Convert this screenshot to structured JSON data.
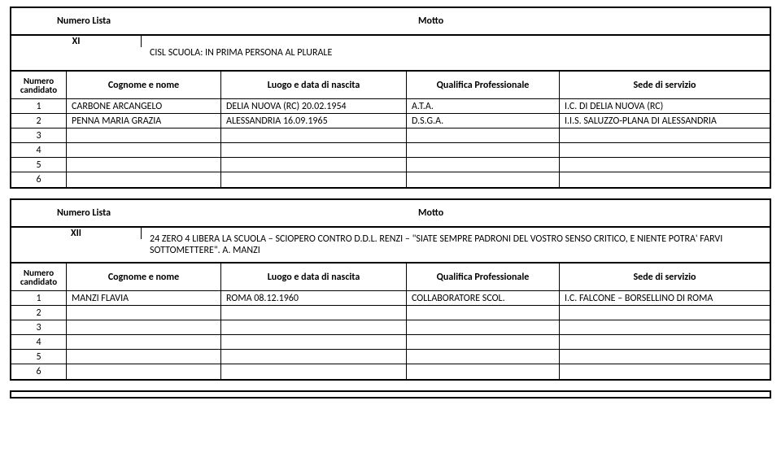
{
  "labels": {
    "numero_lista": "Numero Lista",
    "motto": "Motto",
    "numero": "Numero",
    "candidato": "candidato",
    "cognome_nome": "Cognome e nome",
    "luogo_data": "Luogo e data di nascita",
    "qualifica": "Qualifica Professionale",
    "sede": "Sede di servizio"
  },
  "lists": [
    {
      "num": "XI",
      "motto": "CISL SCUOLA: IN PRIMA PERSONA AL PLURALE",
      "rows": [
        {
          "n": "1",
          "name": "CARBONE ARCANGELO",
          "luogo": "DELIA NUOVA (RC)  20.02.1954",
          "qual": "A.T.A.",
          "sede": "I.C. DI DELIA NUOVA (RC)"
        },
        {
          "n": "2",
          "name": "PENNA MARIA GRAZIA",
          "luogo": "ALESSANDRIA  16.09.1965",
          "qual": "D.S.G.A.",
          "sede": "I.I.S. SALUZZO-PLANA DI ALESSANDRIA"
        },
        {
          "n": "3",
          "name": "",
          "luogo": "",
          "qual": "",
          "sede": ""
        },
        {
          "n": "4",
          "name": "",
          "luogo": "",
          "qual": "",
          "sede": ""
        },
        {
          "n": "5",
          "name": "",
          "luogo": "",
          "qual": "",
          "sede": ""
        },
        {
          "n": "6",
          "name": "",
          "luogo": "",
          "qual": "",
          "sede": ""
        }
      ]
    },
    {
      "num": "XII",
      "motto": "24 ZERO 4 LIBERA LA SCUOLA – SCIOPERO CONTRO D.D.L. RENZI – \"SIATE SEMPRE PADRONI DEL VOSTRO SENSO CRITICO, E NIENTE POTRA' FARVI SOTTOMETTERE\". A. MANZI",
      "rows": [
        {
          "n": "1",
          "name": "MANZI FLAVIA",
          "luogo": "ROMA  08.12.1960",
          "qual": "COLLABORATORE SCOL.",
          "sede": "I.C. FALCONE – BORSELLINO DI ROMA"
        },
        {
          "n": "2",
          "name": "",
          "luogo": "",
          "qual": "",
          "sede": ""
        },
        {
          "n": "3",
          "name": "",
          "luogo": "",
          "qual": "",
          "sede": ""
        },
        {
          "n": "4",
          "name": "",
          "luogo": "",
          "qual": "",
          "sede": ""
        },
        {
          "n": "5",
          "name": "",
          "luogo": "",
          "qual": "",
          "sede": ""
        },
        {
          "n": "6",
          "name": "",
          "luogo": "",
          "qual": "",
          "sede": ""
        }
      ]
    }
  ]
}
